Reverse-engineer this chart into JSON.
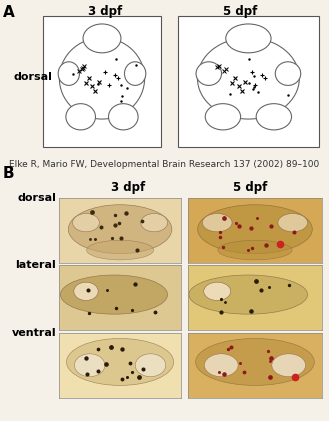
{
  "panel_A_label": "A",
  "panel_B_label": "B",
  "col_labels": [
    "3 dpf",
    "5 dpf"
  ],
  "row_labels_B": [
    "dorsal",
    "lateral",
    "ventral"
  ],
  "row_label_A": "dorsal",
  "citation": "Elke R, Mario FW, Developmental Brain Research 137 (2002) 89–100",
  "background_color": "#f5f0e8",
  "panel_A_bg": "#ffffff",
  "panel_B_bg": "#f0e8d8",
  "brain_outline_color": "#888888",
  "dot_color": "#222222",
  "title_fontsize": 8.5,
  "label_fontsize": 8,
  "citation_fontsize": 6.5,
  "panel_letter_fontsize": 11
}
